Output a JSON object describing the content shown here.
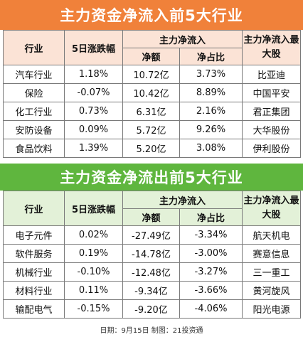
{
  "inflow": {
    "title": "主力资金净流入前5大行业",
    "headers": {
      "industry": "行业",
      "change5d": "5日涨跌幅",
      "netflow_group": "主力净流入",
      "amount": "净额",
      "ratio": "净占比",
      "top_stock": "主力净流入最大股"
    },
    "rows": [
      {
        "industry": "汽车行业",
        "change": "1.18%",
        "amount": "10.72亿",
        "ratio": "3.73%",
        "stock": "比亚迪"
      },
      {
        "industry": "保险",
        "change": "-0.07%",
        "amount": "10.42亿",
        "ratio": "8.89%",
        "stock": "中国平安"
      },
      {
        "industry": "化工行业",
        "change": "0.73%",
        "amount": "6.31亿",
        "ratio": "2.16%",
        "stock": "君正集团"
      },
      {
        "industry": "安防设备",
        "change": "0.09%",
        "amount": "5.72亿",
        "ratio": "9.26%",
        "stock": "大华股份"
      },
      {
        "industry": "食品饮料",
        "change": "1.39%",
        "amount": "5.20亿",
        "ratio": "3.08%",
        "stock": "伊利股份"
      }
    ]
  },
  "outflow": {
    "title": "主力资金净流出前5大行业",
    "headers": {
      "industry": "行业",
      "change5d": "5日涨跌幅",
      "netflow_group": "主力净流入",
      "amount": "净额",
      "ratio": "净占比",
      "top_stock": "主力净流入最大股"
    },
    "rows": [
      {
        "industry": "电子元件",
        "change": "0.02%",
        "amount": "-27.49亿",
        "ratio": "-3.34%",
        "stock": "航天机电"
      },
      {
        "industry": "软件服务",
        "change": "0.19%",
        "amount": "-14.78亿",
        "ratio": "-3.00%",
        "stock": "赛意信息"
      },
      {
        "industry": "机械行业",
        "change": "-0.10%",
        "amount": "-12.48亿",
        "ratio": "-3.27%",
        "stock": "三一重工"
      },
      {
        "industry": "材料行业",
        "change": "0.11%",
        "amount": "-9.34亿",
        "ratio": "-3.66%",
        "stock": "黄河旋风"
      },
      {
        "industry": "输配电气",
        "change": "-0.15%",
        "amount": "-9.20亿",
        "ratio": "-4.06%",
        "stock": "阳光电源"
      }
    ]
  },
  "footer": "日期：9月15日 制图：21投资通",
  "colors": {
    "inflow_banner": "#f0813a",
    "inflow_header": "#fbe3d6",
    "outflow_banner": "#5fb63e",
    "outflow_header": "#e3f1d8"
  }
}
